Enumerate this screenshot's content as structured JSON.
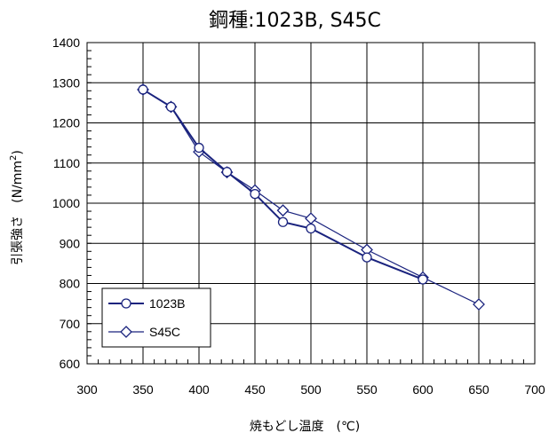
{
  "chart_data": {
    "type": "line",
    "title": "鋼種:1023B, S45C",
    "xlabel": "焼もどし温度　(℃)",
    "ylabel": "引張強さ　(N/mm",
    "ylabel_sup": "2",
    "ylabel_close": ")",
    "xlim": [
      300,
      700
    ],
    "ylim": [
      600,
      1400
    ],
    "xticks": [
      300,
      350,
      400,
      450,
      500,
      550,
      600,
      650,
      700
    ],
    "yticks": [
      600,
      700,
      800,
      900,
      1000,
      1100,
      1200,
      1300,
      1400
    ],
    "grid": true,
    "legend_position": "bottom-left",
    "series": [
      {
        "name": "1023B",
        "marker": "circle",
        "color": "#1a237e",
        "points": [
          [
            350,
            1283
          ],
          [
            375,
            1240
          ],
          [
            400,
            1138
          ],
          [
            425,
            1078
          ],
          [
            450,
            1023
          ],
          [
            475,
            953
          ],
          [
            500,
            937
          ],
          [
            550,
            865
          ],
          [
            600,
            810
          ]
        ]
      },
      {
        "name": "S45C",
        "marker": "diamond",
        "color": "#1a237e",
        "points": [
          [
            350,
            1283
          ],
          [
            375,
            1240
          ],
          [
            400,
            1128
          ],
          [
            425,
            1077
          ],
          [
            450,
            1032
          ],
          [
            475,
            982
          ],
          [
            500,
            962
          ],
          [
            550,
            884
          ],
          [
            600,
            815
          ],
          [
            650,
            748
          ]
        ]
      }
    ]
  }
}
